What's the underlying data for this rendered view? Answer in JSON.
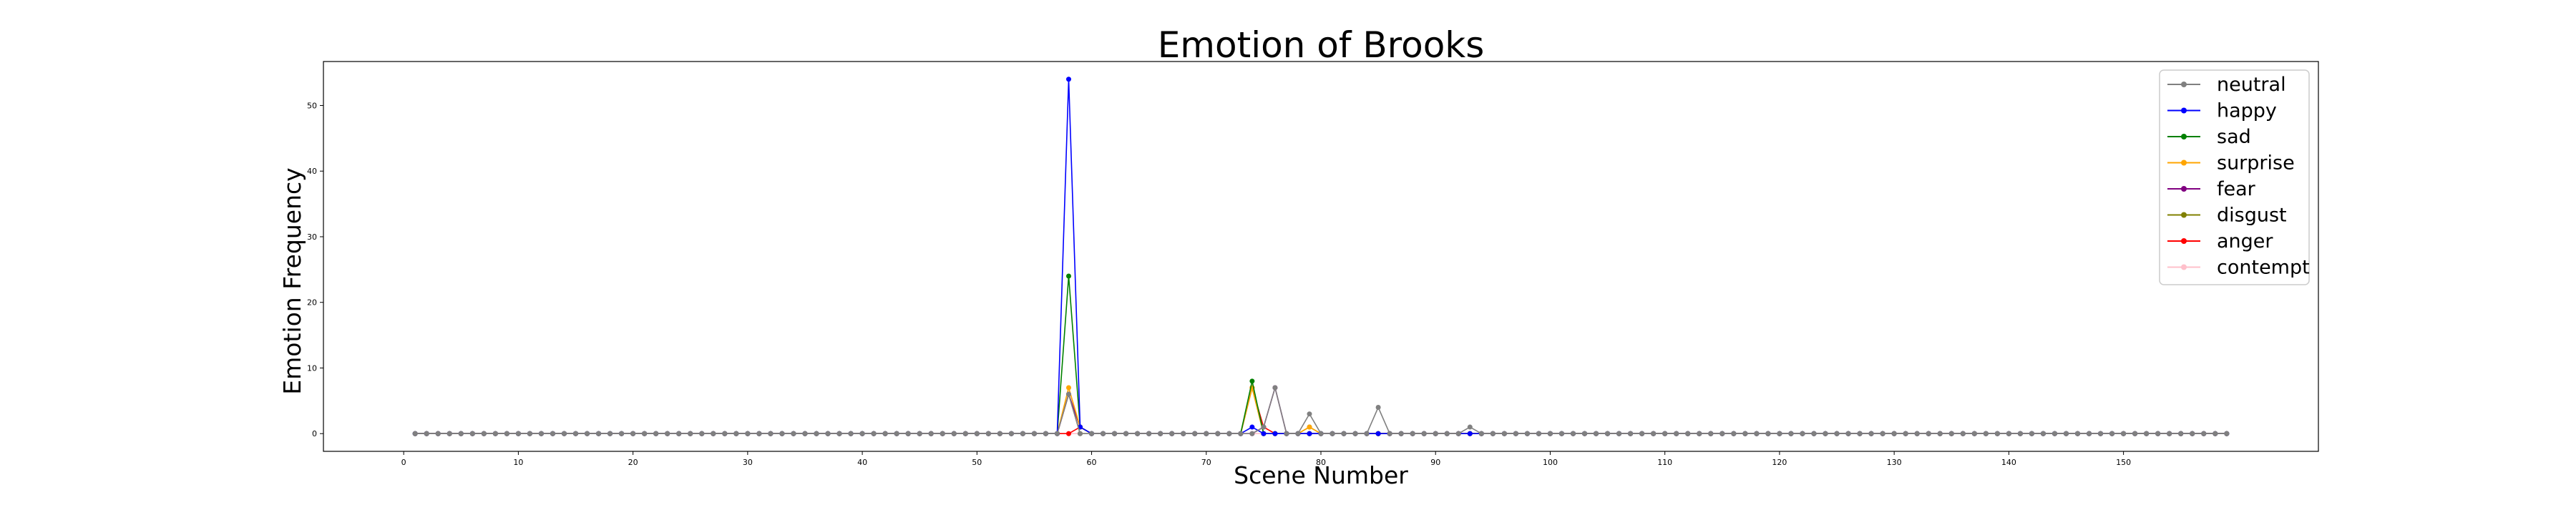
{
  "chart_data": {
    "type": "line",
    "title": "Emotion of Brooks",
    "xlabel": "Scene Number",
    "ylabel": "Emotion Frequency",
    "xlim": [
      -7,
      167
    ],
    "ylim": [
      -2.7,
      56.7
    ],
    "xticks": [
      0,
      10,
      20,
      30,
      40,
      50,
      60,
      70,
      80,
      90,
      100,
      110,
      120,
      130,
      140,
      150
    ],
    "yticks": [
      0,
      10,
      20,
      30,
      40,
      50
    ],
    "grid": false,
    "legend_position": "top-right",
    "x_range": [
      1,
      159
    ],
    "series": [
      {
        "name": "neutral",
        "color": "#808080",
        "points": [
          [
            58,
            6
          ],
          [
            75,
            1
          ],
          [
            76,
            7
          ],
          [
            79,
            3
          ],
          [
            85,
            4
          ],
          [
            93,
            1
          ]
        ]
      },
      {
        "name": "happy",
        "color": "#0000ff",
        "points": [
          [
            58,
            54
          ],
          [
            59,
            1
          ],
          [
            74,
            1
          ]
        ]
      },
      {
        "name": "sad",
        "color": "#008000",
        "points": [
          [
            58,
            24
          ],
          [
            59,
            1
          ],
          [
            74,
            8
          ]
        ]
      },
      {
        "name": "surprise",
        "color": "#ffa500",
        "points": [
          [
            58,
            7
          ],
          [
            59,
            1
          ],
          [
            74,
            7
          ],
          [
            79,
            1
          ]
        ]
      },
      {
        "name": "fear",
        "color": "#800080",
        "points": [
          [
            58,
            6
          ],
          [
            59,
            1
          ],
          [
            75,
            1
          ],
          [
            76,
            7
          ]
        ]
      },
      {
        "name": "disgust",
        "color": "#808000",
        "points": [
          [
            58,
            6
          ],
          [
            74,
            7
          ],
          [
            79,
            1
          ]
        ]
      },
      {
        "name": "anger",
        "color": "#ff0000",
        "points": [
          [
            59,
            1
          ],
          [
            74,
            7
          ],
          [
            75,
            1
          ]
        ]
      },
      {
        "name": "contempt",
        "color": "#ffc0cb",
        "points": []
      }
    ]
  }
}
